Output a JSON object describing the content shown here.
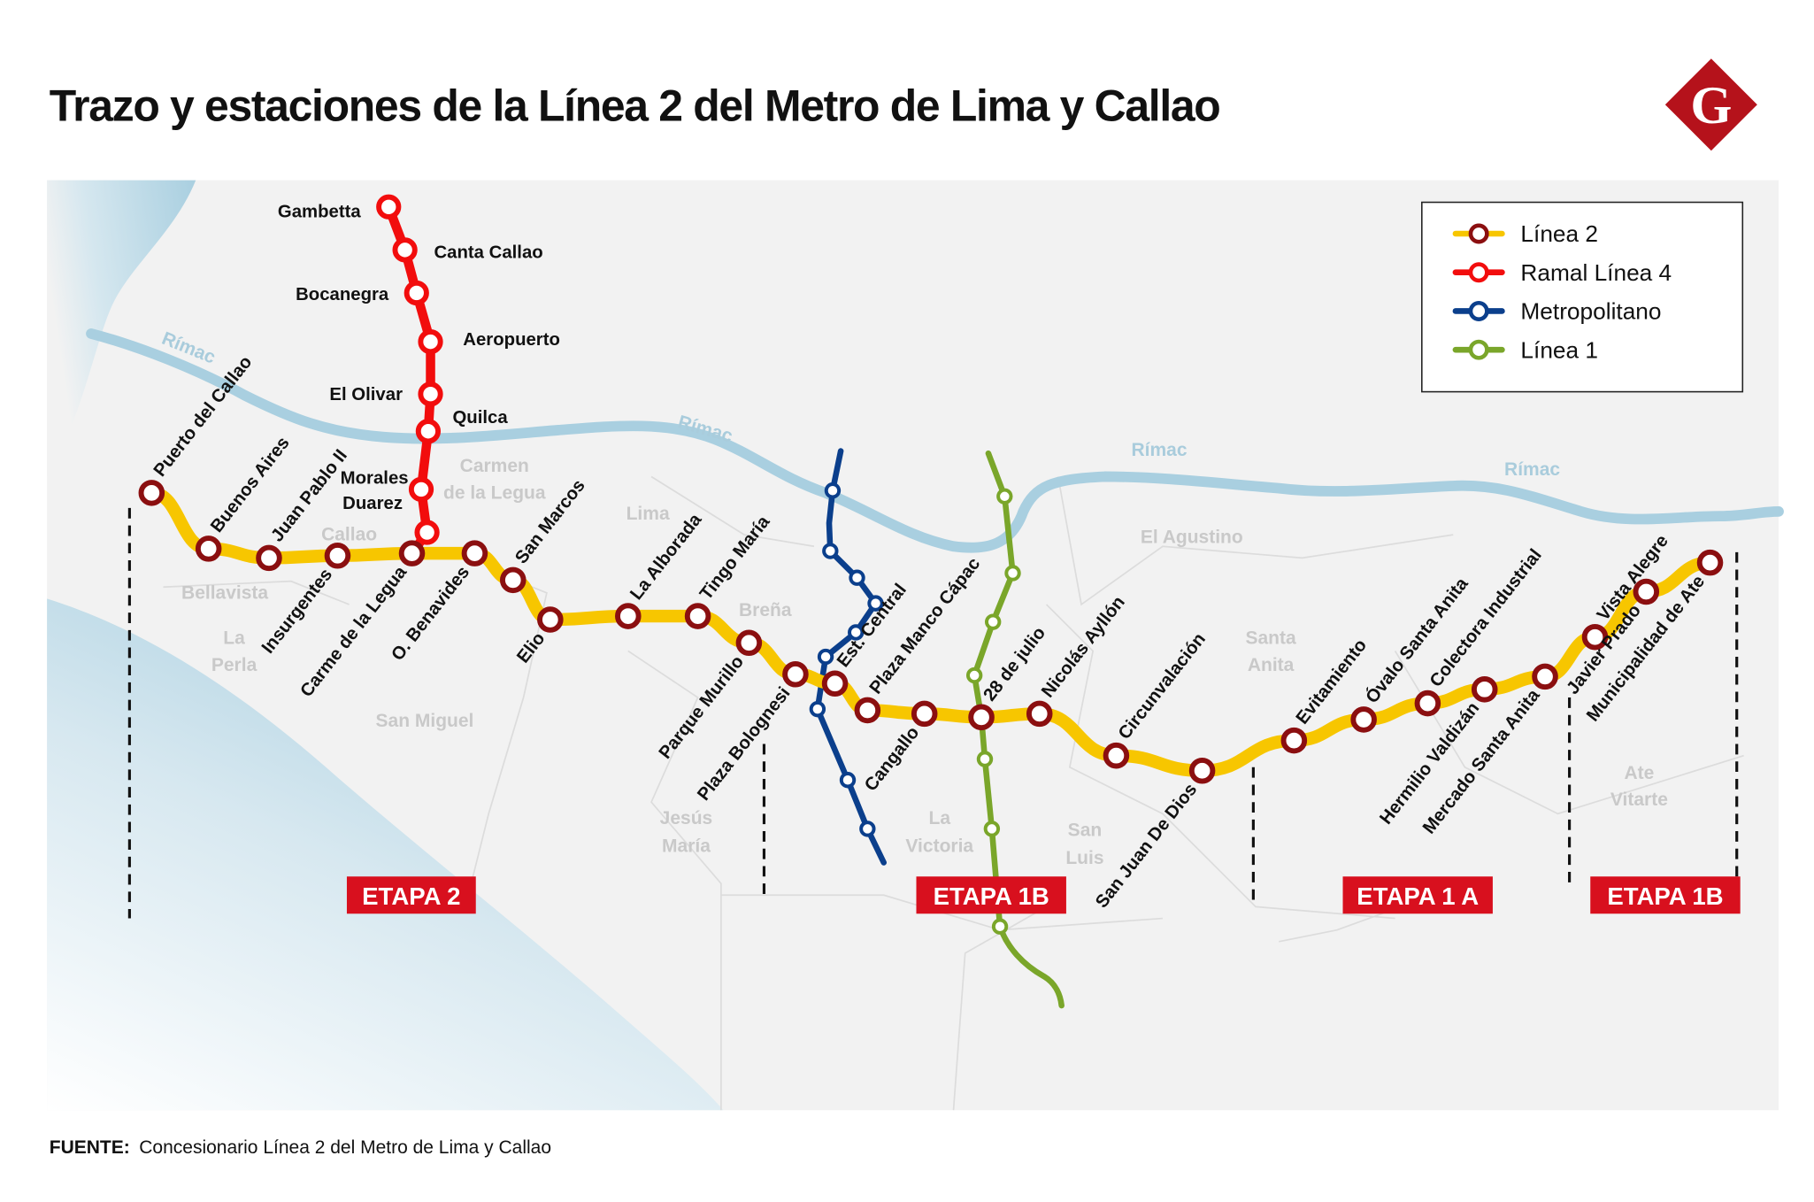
{
  "title": "Trazo y estaciones de la Línea 2 del Metro de Lima y Callao",
  "logo": {
    "letter": "G",
    "color": "#b5121b"
  },
  "colors": {
    "linea2": "#f7c600",
    "linea2_station": "#8b0f10",
    "ramal4": "#f20d0d",
    "metropolitano": "#0b3f8c",
    "linea1": "#7aa62a",
    "etapa": "#d8101e",
    "river": "#a9cfe0",
    "sea": "#a9cfe0",
    "map_bg": "#f2f2f2"
  },
  "legend": [
    {
      "label": "Línea 2",
      "line": "linea2"
    },
    {
      "label": "Ramal Línea 4",
      "line": "ramal4"
    },
    {
      "label": "Metropolitano",
      "line": "metropolitano"
    },
    {
      "label": "Línea 1",
      "line": "linea1"
    }
  ],
  "linea2_stations": [
    "Puerto del Callao",
    "Buenos Aires",
    "Juan Pablo II",
    "Insurgentes",
    "Carme de la Legua",
    "O. Benavides",
    "San Marcos",
    "Elio",
    "La Alborada",
    "Tingo María",
    "Parque Murillo",
    "Plaza Bolognesi",
    "Est. Central",
    "Plaza Manco Cápac",
    "Cangallo",
    "28 de julio",
    "Nicolás Ayllón",
    "Circunvalación",
    "San Juan De Dios",
    "Evitamiento",
    "Óvalo Santa Anita",
    "Colectora Industrial",
    "Hermilio Valdizán",
    "Mercado Santa Anita",
    "Vista Alegre",
    "Javier Prado",
    "Municipalidad de Ate"
  ],
  "ramal4_stations": [
    "Gambetta",
    "Canta Callao",
    "Bocanegra",
    "Aeropuerto",
    "El Olivar",
    "Quilca",
    "Morales",
    "Duarez"
  ],
  "districts": [
    "Carmen",
    "de la Legua",
    "Lima",
    "Callao",
    "Bellavista",
    "La",
    "Perla",
    "Breña",
    "San Miguel",
    "Jesús",
    "María",
    "La",
    "Victoria",
    "San",
    "Luis",
    "El Agustino",
    "Santa",
    "Anita",
    "Ate",
    "Vitarte"
  ],
  "rivers": [
    "Rímac",
    "Rímac",
    "Rímac",
    "Rímac"
  ],
  "etapas": [
    "ETAPA 2",
    "ETAPA 1B",
    "ETAPA 1 A",
    "ETAPA 1B"
  ],
  "footer": {
    "label": "FUENTE:",
    "text": "Concesionario Línea 2 del Metro de Lima y Callao"
  }
}
